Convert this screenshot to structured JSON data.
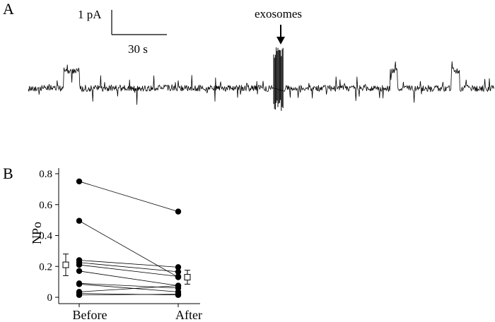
{
  "panel_a": {
    "label": "A",
    "scale_bar": {
      "current_label": "1 pA",
      "time_label": "30 s"
    },
    "annotation": "exosomes"
  },
  "chart_data": {
    "type": "scatter",
    "panel_label": "B",
    "categories": [
      "Before",
      "After"
    ],
    "ylabel": "NPo",
    "ylim": [
      0,
      0.8
    ],
    "yticks": [
      0,
      0.2,
      0.4,
      0.6,
      0.8
    ],
    "ytick_labels": [
      "0",
      "0.2",
      "0.4",
      "0.6",
      "0.8"
    ],
    "paired": [
      {
        "before": 0.75,
        "after": 0.555
      },
      {
        "before": 0.495,
        "after": 0.13
      },
      {
        "before": 0.24,
        "after": 0.195
      },
      {
        "before": 0.225,
        "after": 0.165
      },
      {
        "before": 0.21,
        "after": 0.135
      },
      {
        "before": 0.17,
        "after": 0.075
      },
      {
        "before": 0.09,
        "after": 0.06
      },
      {
        "before": 0.085,
        "after": 0.035
      },
      {
        "before": 0.035,
        "after": 0.075
      },
      {
        "before": 0.025,
        "after": 0.015
      },
      {
        "before": 0.015,
        "after": 0.02
      }
    ],
    "mean_sem": [
      {
        "category": "Before",
        "mean": 0.21,
        "sem": 0.07
      },
      {
        "category": "After",
        "mean": 0.13,
        "sem": 0.045
      }
    ]
  }
}
